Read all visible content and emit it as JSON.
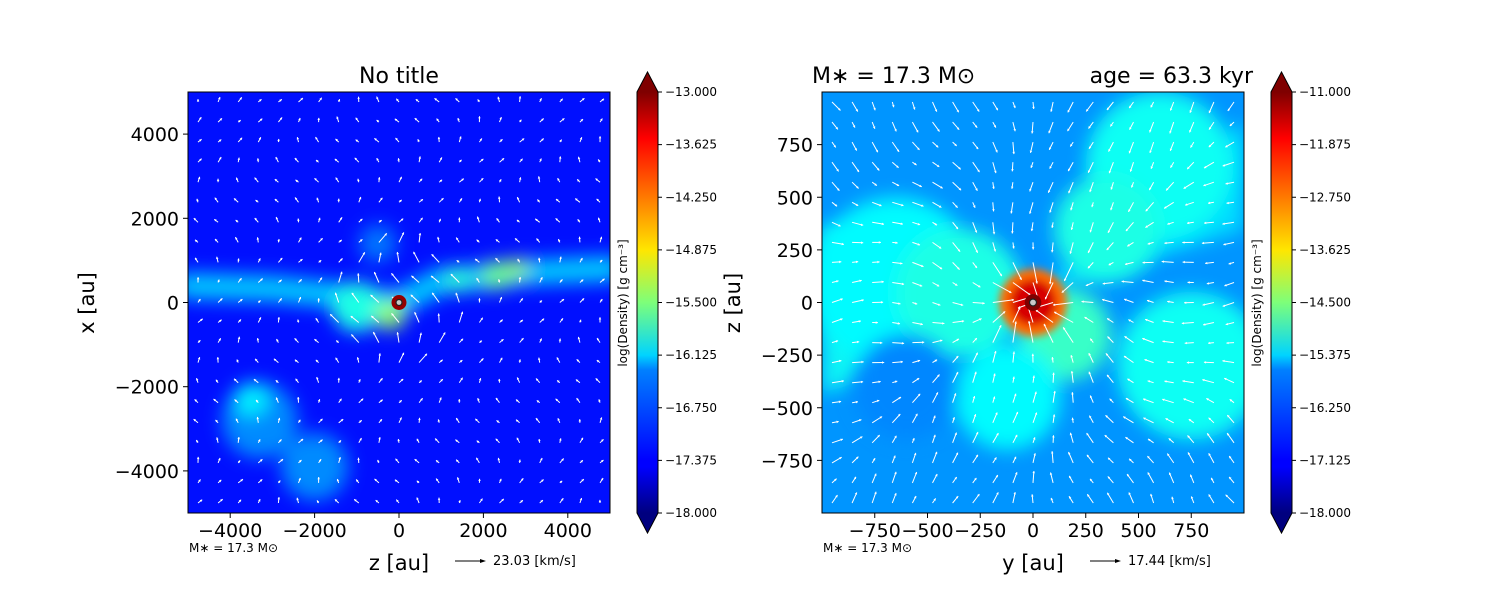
{
  "chart_data": [
    {
      "type": "heatmap",
      "title": "No title",
      "xlabel": "z [au]",
      "ylabel": "x [au]",
      "xlim": [
        -5000,
        5000
      ],
      "ylim": [
        -5000,
        5000
      ],
      "xticks": [
        -4000,
        -2000,
        0,
        2000,
        4000
      ],
      "yticks": [
        -4000,
        -2000,
        0,
        2000,
        4000
      ],
      "xtick_labels": [
        "−4000",
        "−2000",
        "0",
        "2000",
        "4000"
      ],
      "ytick_labels": [
        "−4000",
        "−2000",
        "0",
        "2000",
        "4000"
      ],
      "colorbar": {
        "label": "log(Density) [g cm⁻³]",
        "min": -18.0,
        "max": -13.0,
        "ticks": [
          "−13.000",
          "−13.625",
          "−14.250",
          "−14.875",
          "−15.500",
          "−16.125",
          "−16.750",
          "−17.375",
          "−18.000"
        ],
        "extend": "both",
        "colormap": "jet"
      },
      "background_level": -17.3,
      "features": [
        {
          "kind": "filament",
          "points": [
            [
              -5000,
              400
            ],
            [
              -3000,
              330
            ],
            [
              -1500,
              180
            ],
            [
              -300,
              0
            ],
            [
              0,
              0
            ],
            [
              1000,
              520
            ],
            [
              2200,
              620
            ],
            [
              3000,
              720
            ],
            [
              5000,
              800
            ]
          ],
          "level": -16.4
        },
        {
          "kind": "blob",
          "x": -1000,
          "y": -100,
          "r": 600,
          "level": -16.0
        },
        {
          "kind": "blob",
          "x": -200,
          "y": -300,
          "r": 350,
          "level": -15.4
        },
        {
          "kind": "blob",
          "x": 1400,
          "y": 550,
          "r": 300,
          "level": -15.9
        },
        {
          "kind": "blob",
          "x": 2300,
          "y": 650,
          "r": 350,
          "level": -15.6
        },
        {
          "kind": "blob",
          "x": 2800,
          "y": 800,
          "r": 250,
          "level": -15.4
        },
        {
          "kind": "blob",
          "x": -3300,
          "y": -2800,
          "r": 900,
          "level": -16.7
        },
        {
          "kind": "blob",
          "x": -3500,
          "y": -2300,
          "r": 400,
          "level": -16.2
        },
        {
          "kind": "blob",
          "x": -2000,
          "y": -3900,
          "r": 800,
          "level": -16.7
        },
        {
          "kind": "blob",
          "x": -500,
          "y": 1400,
          "r": 450,
          "level": -16.8
        },
        {
          "kind": "sink",
          "x": 0,
          "y": 0,
          "r": 130,
          "level": -13.1
        }
      ],
      "annotation": "M∗ = 17.3 M⊙",
      "velocity_key": "23.03 [km/s]"
    },
    {
      "type": "heatmap",
      "title_left": "M∗ = 17.3 M⊙",
      "title_right": "age = 63.3 kyr",
      "xlabel": "y [au]",
      "ylabel": "z [au]",
      "xlim": [
        -1000,
        1000
      ],
      "ylim": [
        -1000,
        1000
      ],
      "xticks": [
        -750,
        -500,
        -250,
        0,
        250,
        500,
        750
      ],
      "yticks": [
        -750,
        -500,
        -250,
        0,
        250,
        500,
        750
      ],
      "xtick_labels": [
        "−750",
        "−500",
        "−250",
        "0",
        "250",
        "500",
        "750"
      ],
      "ytick_labels": [
        "−750",
        "−500",
        "−250",
        "0",
        "250",
        "500",
        "750"
      ],
      "colorbar": {
        "label": "log(Density) [g cm⁻³]",
        "min": -18.0,
        "max": -11.0,
        "ticks": [
          "−11.000",
          "−11.875",
          "−12.750",
          "−13.625",
          "−14.500",
          "−15.375",
          "−16.250",
          "−17.125",
          "−18.000"
        ],
        "extend": "both",
        "colormap": "jet"
      },
      "background_level": -16.1,
      "features": [
        {
          "kind": "blob",
          "x": -650,
          "y": 100,
          "r": 400,
          "level": -15.4
        },
        {
          "kind": "blob",
          "x": -350,
          "y": 50,
          "r": 300,
          "level": -15.2
        },
        {
          "kind": "blob",
          "x": 600,
          "y": 650,
          "r": 350,
          "level": -15.3
        },
        {
          "kind": "blob",
          "x": 350,
          "y": 350,
          "r": 250,
          "level": -15.2
        },
        {
          "kind": "blob",
          "x": 750,
          "y": -300,
          "r": 350,
          "level": -15.3
        },
        {
          "kind": "blob",
          "x": 150,
          "y": -150,
          "r": 220,
          "level": -15.0
        },
        {
          "kind": "blob",
          "x": -120,
          "y": -450,
          "r": 250,
          "level": -15.4
        },
        {
          "kind": "blob",
          "x": -600,
          "y": -400,
          "r": 250,
          "level": -16.2
        },
        {
          "kind": "blob",
          "x": 0,
          "y": 0,
          "r": 160,
          "level": -12.6
        },
        {
          "kind": "blob",
          "x": 0,
          "y": 0,
          "r": 110,
          "level": -11.6
        },
        {
          "kind": "sink",
          "x": 0,
          "y": 0,
          "r": 30,
          "level": -11.0
        }
      ],
      "annotation": "M∗ = 17.3 M⊙",
      "velocity_key": "17.44 [km/s]"
    }
  ]
}
